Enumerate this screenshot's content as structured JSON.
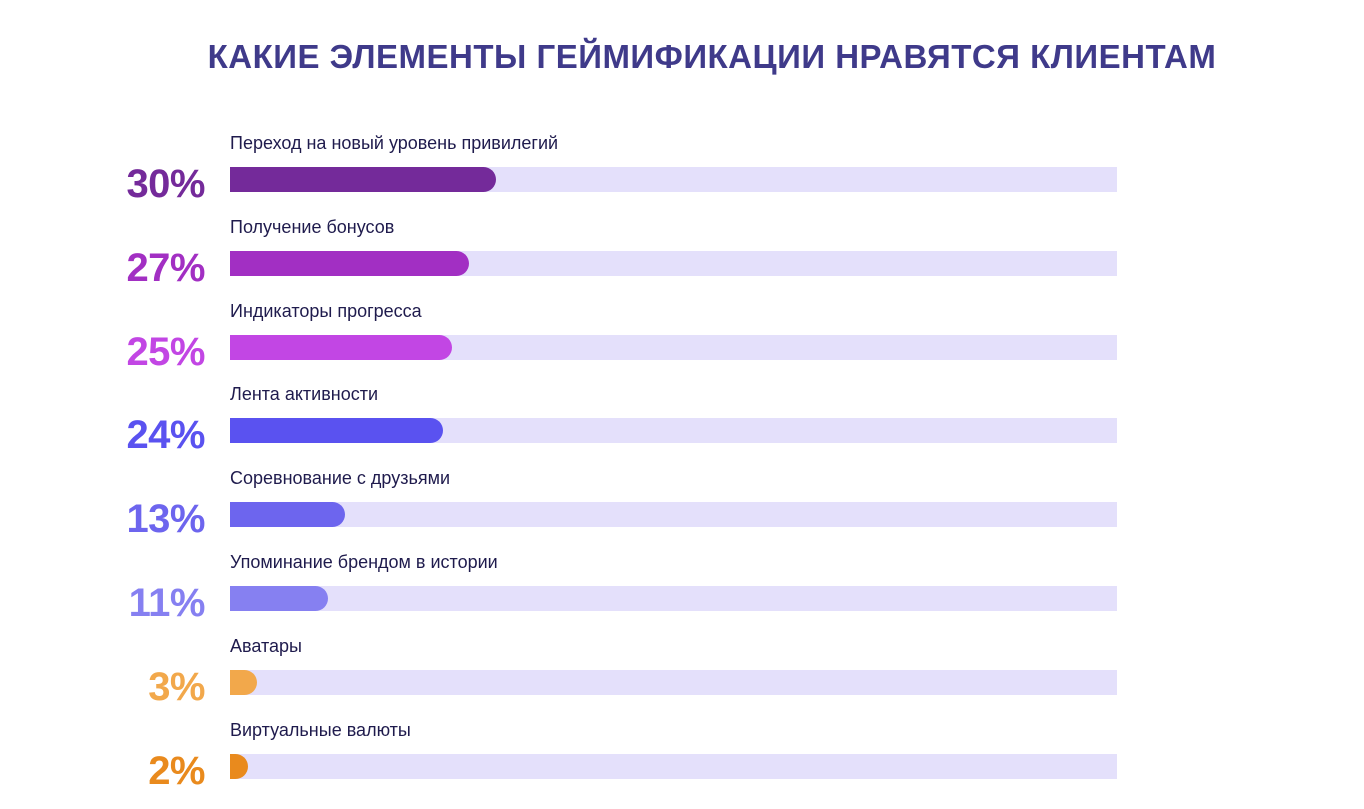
{
  "title": "КАКИЕ ЭЛЕМЕНТЫ ГЕЙМИФИКАЦИИ НРАВЯТСЯ КЛИЕНТАМ",
  "chart_data": {
    "type": "bar",
    "orientation": "horizontal",
    "title": "КАКИЕ ЭЛЕМЕНТЫ ГЕЙМИФИКАЦИИ НРАВЯТСЯ КЛИЕНТАМ",
    "xlabel": "",
    "ylabel": "",
    "xlim": [
      0,
      100
    ],
    "grid": false,
    "categories": [
      "Переход на новый уровень привилегий",
      "Получение бонусов",
      "Индикаторы прогресса",
      "Лента активности",
      "Соревнование с друзьями",
      "Упоминание брендом в истории",
      "Аватары",
      "Виртуальные валюты"
    ],
    "values": [
      30,
      27,
      25,
      24,
      13,
      11,
      3,
      2
    ],
    "value_labels": [
      "30%",
      "27%",
      "25%",
      "24%",
      "13%",
      "11%",
      "3%",
      "2%"
    ],
    "colors": [
      "#742a9a",
      "#a22fc3",
      "#c246e4",
      "#5a52f0",
      "#6d65ee",
      "#8680f1",
      "#f2a84b",
      "#e98a1d"
    ],
    "track_color": "#e4e0fb"
  }
}
